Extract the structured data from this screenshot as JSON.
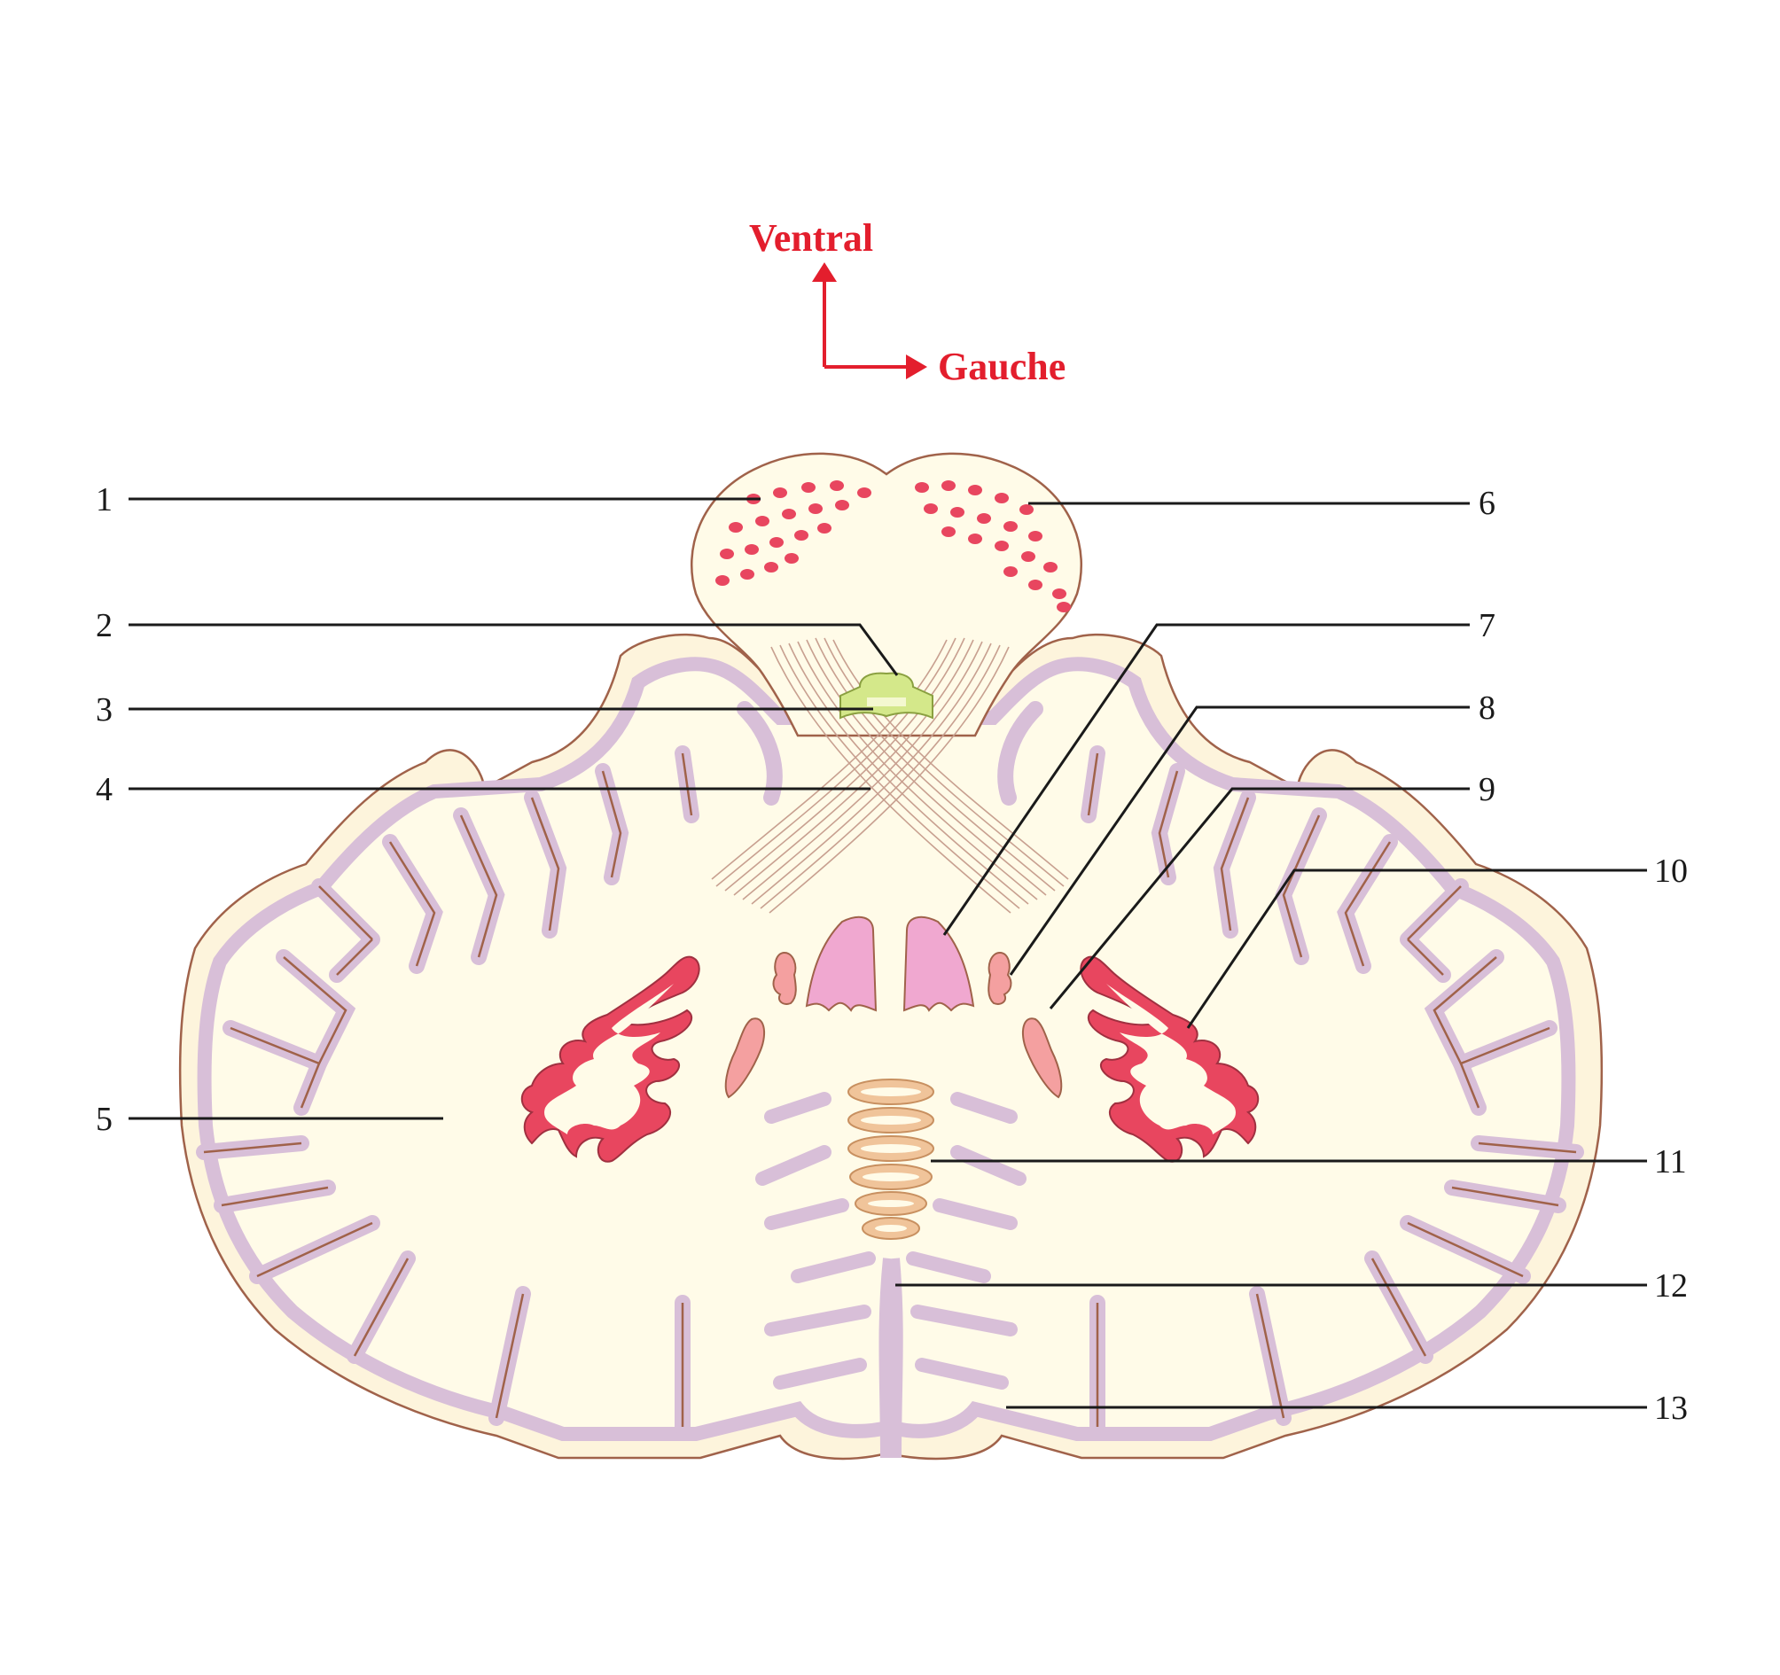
{
  "orientation": {
    "ventral": "Ventral",
    "left": "Gauche",
    "color": "#e31e2d"
  },
  "labels": [
    {
      "id": "1",
      "text": "1"
    },
    {
      "id": "2",
      "text": "2"
    },
    {
      "id": "3",
      "text": "3"
    },
    {
      "id": "4",
      "text": "4"
    },
    {
      "id": "5",
      "text": "5"
    },
    {
      "id": "6",
      "text": "6"
    },
    {
      "id": "7",
      "text": "7"
    },
    {
      "id": "8",
      "text": "8"
    },
    {
      "id": "9",
      "text": "9"
    },
    {
      "id": "10",
      "text": "10"
    },
    {
      "id": "11",
      "text": "11"
    },
    {
      "id": "12",
      "text": "12"
    },
    {
      "id": "13",
      "text": "13"
    }
  ],
  "colors": {
    "white_matter": "#fffbe8",
    "outline": "#a0624a",
    "cortex": "#d8bfd8",
    "nucleus_red": "#e8465f",
    "nucleus_pink": "#f0a8d0",
    "nucleus_salmon": "#f4a0a0",
    "ventricle_green": "#d4e88a",
    "nodule_tan": "#f0c49a"
  }
}
